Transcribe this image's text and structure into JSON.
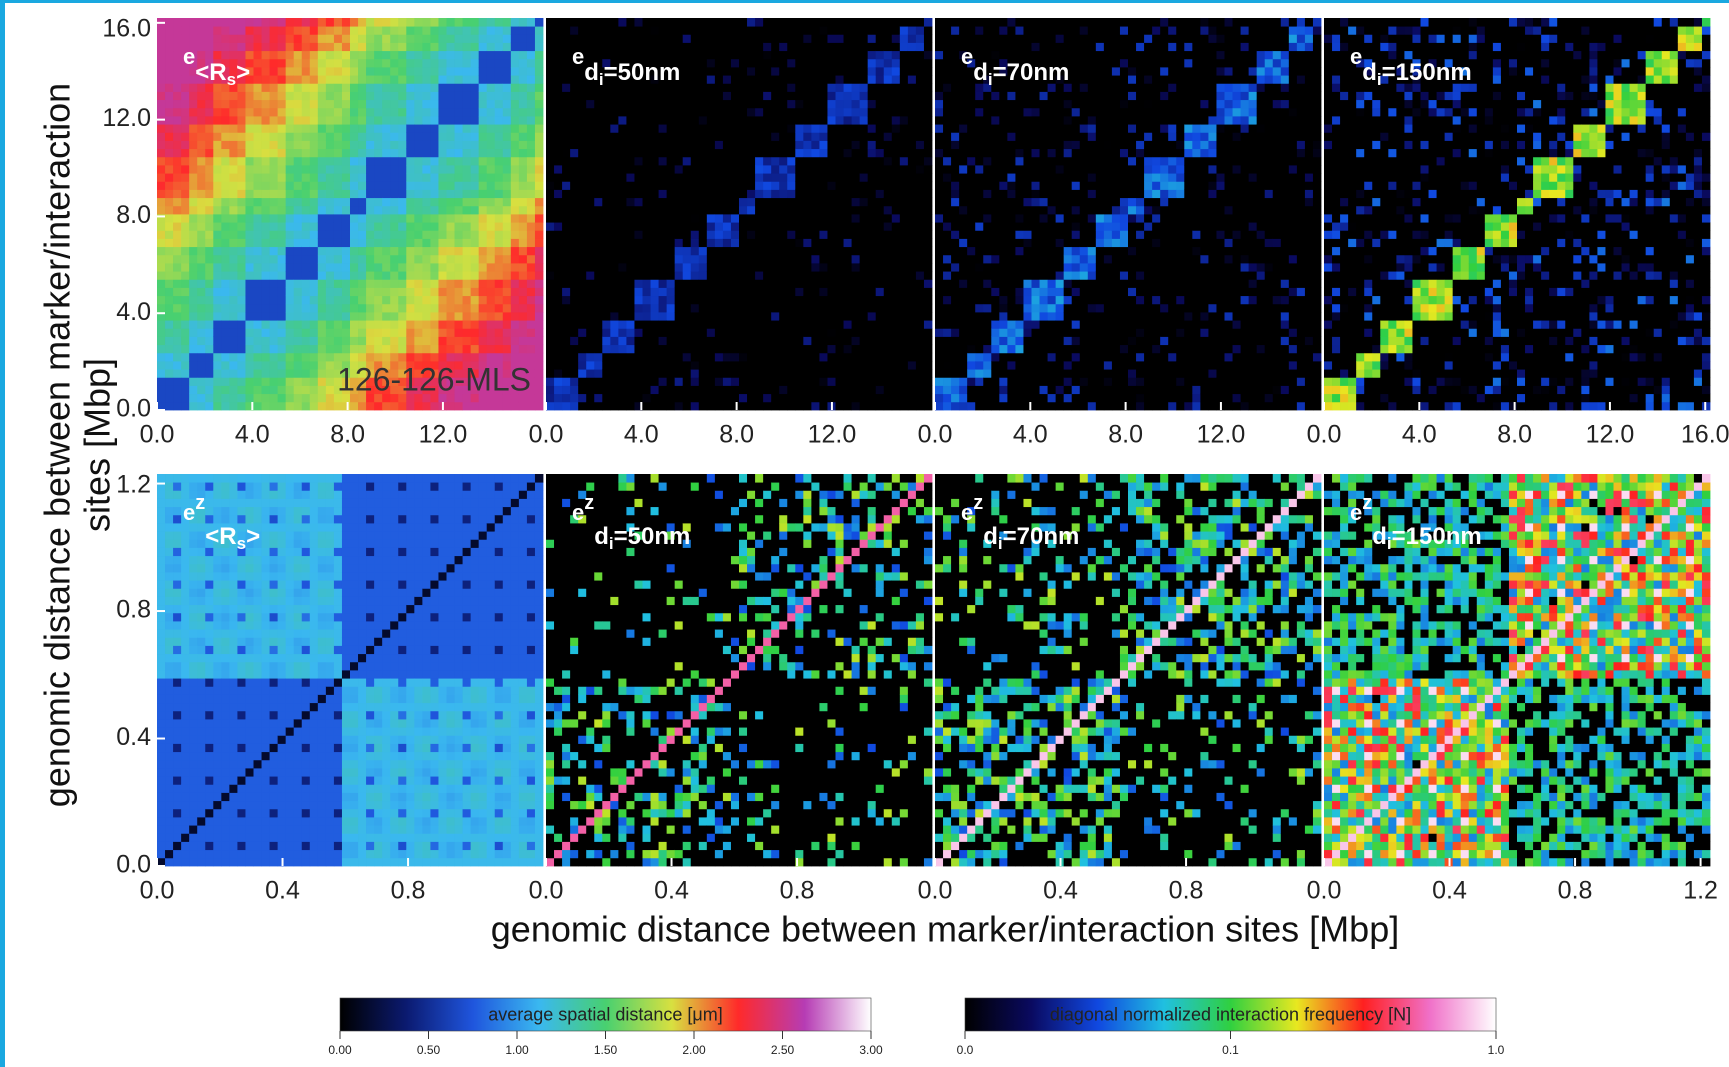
{
  "figure": {
    "ylabel_lines": [
      "genomic distance between marker/interaction",
      "sites [Mbp]"
    ],
    "xlabel": "genomic distance between marker/interaction sites [Mbp]"
  },
  "chart_data": [
    {
      "type": "heatmap",
      "colormap": "distance",
      "label_base": "e",
      "label_sub": "<R",
      "label_subsub": "s",
      "label_tail": ">",
      "annotation": "126-126-MLS",
      "xlim": [
        0,
        16.2
      ],
      "ylim": [
        0,
        16.2
      ],
      "xticks": [
        {
          "value": 0,
          "label": "0.0"
        },
        {
          "value": 4,
          "label": "4.0"
        },
        {
          "value": 8,
          "label": "8.0"
        },
        {
          "value": 12,
          "label": "12.0"
        }
      ],
      "yticks": [
        {
          "value": 0,
          "label": "0.0"
        },
        {
          "value": 4,
          "label": "4.0"
        },
        {
          "value": 8,
          "label": "8.0"
        },
        {
          "value": 12,
          "label": "12.0"
        },
        {
          "value": 16,
          "label": "16.0"
        }
      ]
    },
    {
      "type": "heatmap",
      "colormap": "frequency",
      "label_base": "e",
      "label_sub": "d",
      "label_subsub": "i",
      "label_tail": "=50nm",
      "xlim": [
        0,
        16.2
      ],
      "ylim": [
        0,
        16.2
      ],
      "xticks": [
        {
          "value": 0,
          "label": "0.0"
        },
        {
          "value": 4,
          "label": "4.0"
        },
        {
          "value": 8,
          "label": "8.0"
        },
        {
          "value": 12,
          "label": "12.0"
        }
      ]
    },
    {
      "type": "heatmap",
      "colormap": "frequency",
      "label_base": "e",
      "label_sub": "d",
      "label_subsub": "i",
      "label_tail": "=70nm",
      "xlim": [
        0,
        16.2
      ],
      "ylim": [
        0,
        16.2
      ],
      "xticks": [
        {
          "value": 0,
          "label": "0.0"
        },
        {
          "value": 4,
          "label": "4.0"
        },
        {
          "value": 8,
          "label": "8.0"
        },
        {
          "value": 12,
          "label": "12.0"
        }
      ]
    },
    {
      "type": "heatmap",
      "colormap": "frequency",
      "label_base": "e",
      "label_sub": "d",
      "label_subsub": "i",
      "label_tail": "=150nm",
      "xlim": [
        0,
        16.2
      ],
      "ylim": [
        0,
        16.2
      ],
      "xticks": [
        {
          "value": 0,
          "label": "0.0"
        },
        {
          "value": 4,
          "label": "4.0"
        },
        {
          "value": 8,
          "label": "8.0"
        },
        {
          "value": 12,
          "label": "12.0"
        },
        {
          "value": 16,
          "label": "16.0"
        }
      ]
    },
    {
      "type": "heatmap",
      "colormap": "distance",
      "label_base": "e",
      "label_sup": "z",
      "label_sub": "<R",
      "label_subsub": "s",
      "label_tail": ">",
      "xlim": [
        0,
        1.23
      ],
      "ylim": [
        0,
        1.23
      ],
      "xticks": [
        {
          "value": 0,
          "label": "0.0"
        },
        {
          "value": 0.4,
          "label": "0.4"
        },
        {
          "value": 0.8,
          "label": "0.8"
        }
      ],
      "yticks": [
        {
          "value": 0,
          "label": "0.0"
        },
        {
          "value": 0.4,
          "label": "0.4"
        },
        {
          "value": 0.8,
          "label": "0.8"
        },
        {
          "value": 1.2,
          "label": "1.2"
        }
      ]
    },
    {
      "type": "heatmap",
      "colormap": "frequency",
      "label_base": "e",
      "label_sup": "z",
      "label_sub": "d",
      "label_subsub": "i",
      "label_tail": "=50nm",
      "xlim": [
        0,
        1.23
      ],
      "ylim": [
        0,
        1.23
      ],
      "xticks": [
        {
          "value": 0,
          "label": "0.0"
        },
        {
          "value": 0.4,
          "label": "0.4"
        },
        {
          "value": 0.8,
          "label": "0.8"
        }
      ]
    },
    {
      "type": "heatmap",
      "colormap": "frequency",
      "label_base": "e",
      "label_sup": "z",
      "label_sub": "d",
      "label_subsub": "i",
      "label_tail": "=70nm",
      "xlim": [
        0,
        1.23
      ],
      "ylim": [
        0,
        1.23
      ],
      "xticks": [
        {
          "value": 0,
          "label": "0.0"
        },
        {
          "value": 0.4,
          "label": "0.4"
        },
        {
          "value": 0.8,
          "label": "0.8"
        }
      ]
    },
    {
      "type": "heatmap",
      "colormap": "frequency",
      "label_base": "e",
      "label_sup": "z",
      "label_sub": "d",
      "label_subsub": "i",
      "label_tail": "=150nm",
      "xlim": [
        0,
        1.23
      ],
      "ylim": [
        0,
        1.23
      ],
      "xticks": [
        {
          "value": 0,
          "label": "0.0"
        },
        {
          "value": 0.4,
          "label": "0.4"
        },
        {
          "value": 0.8,
          "label": "0.8"
        },
        {
          "value": 1.2,
          "label": "1.2"
        }
      ]
    },
    {
      "type": "colorbar",
      "name": "distance",
      "label": "average spatial distance [μm]",
      "log": false,
      "colors": [
        "#000000",
        "#0b1a70",
        "#1f55dd",
        "#3ab8f0",
        "#48d070",
        "#d8e040",
        "#ff2a2a",
        "#b63cb4",
        "#ffffff"
      ],
      "lim": [
        0,
        3
      ],
      "ticks": [
        {
          "value": 0,
          "label": "0.00"
        },
        {
          "value": 0.5,
          "label": "0.50"
        },
        {
          "value": 1,
          "label": "1.00"
        },
        {
          "value": 1.5,
          "label": "1.50"
        },
        {
          "value": 2,
          "label": "2.00"
        },
        {
          "value": 2.5,
          "label": "2.50"
        },
        {
          "value": 3,
          "label": "3.00"
        }
      ]
    },
    {
      "type": "colorbar",
      "name": "frequency",
      "label": "diagonal normalized interaction frequency [N]",
      "log": true,
      "colors": [
        "#000000",
        "#0a0a60",
        "#1048e0",
        "#20c0e0",
        "#30d040",
        "#e8e820",
        "#ff2020",
        "#f070c8",
        "#ffffff"
      ],
      "lim": [
        0.01,
        1
      ],
      "ticks": [
        {
          "value": 0.01,
          "label": "0.0"
        },
        {
          "value": 0.1,
          "label": "0.1"
        },
        {
          "value": 1,
          "label": "1.0"
        }
      ]
    }
  ]
}
